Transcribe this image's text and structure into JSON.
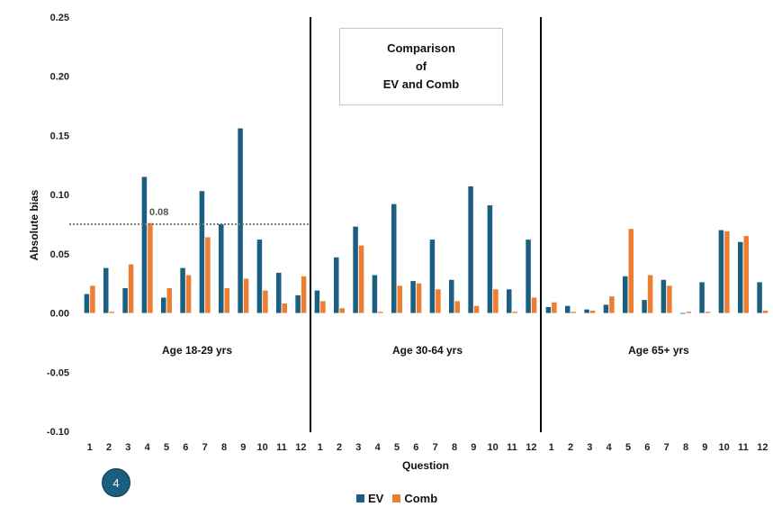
{
  "chart_data": {
    "type": "bar",
    "title_lines": [
      "Comparison",
      "of",
      "EV and Comb"
    ],
    "ylabel": "Absolute bias",
    "xlabel": "Question",
    "ylim": [
      -0.1,
      0.25
    ],
    "yticks": [
      "0.25",
      "0.20",
      "0.15",
      "0.10",
      "0.05",
      "0.00",
      "-0.05",
      "-0.10"
    ],
    "ytick_values": [
      0.25,
      0.2,
      0.15,
      0.1,
      0.05,
      0.0,
      -0.05,
      -0.1
    ],
    "categories": [
      "1",
      "2",
      "3",
      "4",
      "5",
      "6",
      "7",
      "8",
      "9",
      "10",
      "11",
      "12"
    ],
    "groups": [
      {
        "label": "Age 18-29 yrs",
        "ev": [
          0.016,
          0.038,
          0.021,
          0.115,
          0.013,
          0.038,
          0.103,
          0.075,
          0.156,
          0.062,
          0.034,
          0.015
        ],
        "comb": [
          0.023,
          0.001,
          0.041,
          0.076,
          0.021,
          0.032,
          0.064,
          0.021,
          0.029,
          0.019,
          0.008,
          0.031
        ]
      },
      {
        "label": "Age 30-64 yrs",
        "ev": [
          0.019,
          0.047,
          0.073,
          0.032,
          0.092,
          0.027,
          0.062,
          0.028,
          0.107,
          0.091,
          0.02,
          0.062
        ],
        "comb": [
          0.01,
          0.004,
          0.057,
          0.001,
          0.023,
          0.025,
          0.02,
          0.01,
          0.006,
          0.02,
          0.001,
          0.013
        ]
      },
      {
        "label": "Age 65+ yrs",
        "ev": [
          0.005,
          0.006,
          0.003,
          0.007,
          0.031,
          0.011,
          0.028,
          0.0,
          0.026,
          0.07,
          0.06,
          0.026
        ],
        "comb": [
          0.009,
          0.001,
          0.002,
          0.014,
          0.071,
          0.032,
          0.023,
          0.001,
          0.001,
          0.069,
          0.065,
          0.002
        ]
      }
    ],
    "reference_line": {
      "value": 0.075,
      "label": "0.08",
      "group": 0
    },
    "series": [
      {
        "name": "EV",
        "color": "#1b5f80"
      },
      {
        "name": "Comb",
        "color": "#ed7d31"
      }
    ],
    "legend_position": "bottom-center",
    "grid": false
  },
  "badge": {
    "text": "4"
  }
}
